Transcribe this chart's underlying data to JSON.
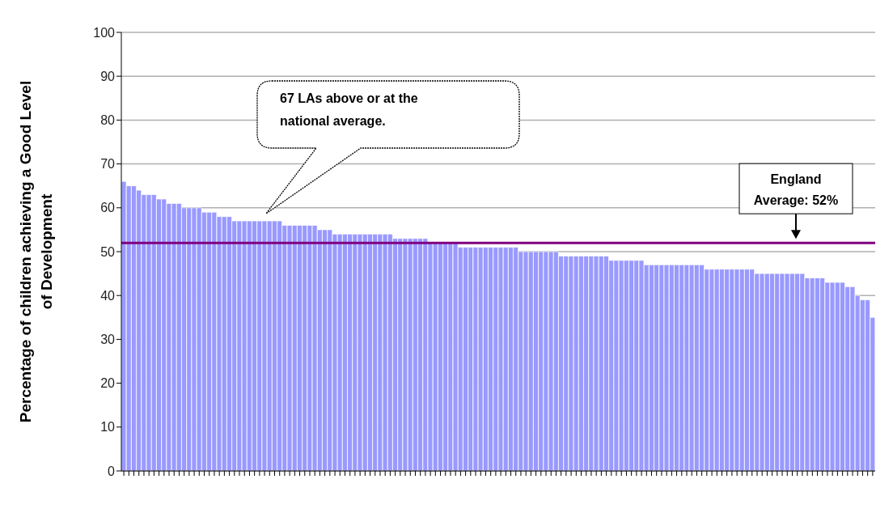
{
  "chart_data": {
    "type": "bar",
    "ylabel": "Percentage of children achieving a Good Level of Development",
    "categories": [
      null,
      null,
      null,
      null,
      null,
      null,
      null,
      null,
      null,
      null,
      null,
      null,
      null,
      null,
      null,
      null,
      null,
      null,
      null,
      null,
      null,
      null,
      null,
      null,
      null,
      null,
      null,
      null,
      null,
      null,
      null,
      null,
      null,
      null,
      null,
      null,
      null,
      null,
      null,
      null,
      null,
      null,
      null,
      null,
      null,
      null,
      null,
      null,
      null,
      null,
      null,
      null,
      null,
      null,
      null,
      null,
      null,
      null,
      null,
      null,
      null,
      null,
      null,
      null,
      null,
      null,
      null,
      null,
      null,
      null,
      null,
      null,
      null,
      null,
      null,
      null,
      null,
      null,
      null,
      null,
      null,
      null,
      null,
      null,
      null,
      null,
      null,
      null,
      null,
      null,
      null,
      null,
      null,
      null,
      null,
      null,
      null,
      null,
      null,
      null,
      null,
      null,
      null,
      null,
      null,
      null,
      null,
      null,
      null,
      null,
      null,
      null,
      null,
      null,
      null,
      null,
      null,
      null,
      null,
      null,
      null,
      null,
      null,
      null,
      null,
      null,
      null,
      null,
      null,
      null,
      null,
      null,
      null,
      null,
      null,
      null,
      null,
      null,
      null,
      null,
      null,
      null,
      null,
      null,
      null,
      null,
      null,
      null,
      null,
      null
    ],
    "values": [
      66,
      65,
      65,
      64,
      63,
      63,
      63,
      62,
      62,
      61,
      61,
      61,
      60,
      60,
      60,
      60,
      59,
      59,
      59,
      58,
      58,
      58,
      57,
      57,
      57,
      57,
      57,
      57,
      57,
      57,
      57,
      57,
      56,
      56,
      56,
      56,
      56,
      56,
      56,
      55,
      55,
      55,
      54,
      54,
      54,
      54,
      54,
      54,
      54,
      54,
      54,
      54,
      54,
      54,
      53,
      53,
      53,
      53,
      53,
      53,
      53,
      52,
      52,
      52,
      52,
      52,
      52,
      51,
      51,
      51,
      51,
      51,
      51,
      51,
      51,
      51,
      51,
      51,
      51,
      50,
      50,
      50,
      50,
      50,
      50,
      50,
      50,
      49,
      49,
      49,
      49,
      49,
      49,
      49,
      49,
      49,
      49,
      48,
      48,
      48,
      48,
      48,
      48,
      48,
      47,
      47,
      47,
      47,
      47,
      47,
      47,
      47,
      47,
      47,
      47,
      47,
      46,
      46,
      46,
      46,
      46,
      46,
      46,
      46,
      46,
      46,
      45,
      45,
      45,
      45,
      45,
      45,
      45,
      45,
      45,
      45,
      44,
      44,
      44,
      44,
      43,
      43,
      43,
      43,
      42,
      42,
      40,
      39,
      39,
      35
    ],
    "color": "#9999ff",
    "ylim": [
      0,
      100
    ],
    "yticks": [
      0,
      10,
      20,
      30,
      40,
      50,
      60,
      70,
      80,
      90,
      100
    ],
    "grid": "y",
    "tick_labels": "y",
    "ref_lines": [
      {
        "axis": "y",
        "value": 52,
        "label": "England Average: 52%",
        "color": "#800080"
      }
    ],
    "annotations": [
      "67 LAs above or at the national average."
    ]
  }
}
